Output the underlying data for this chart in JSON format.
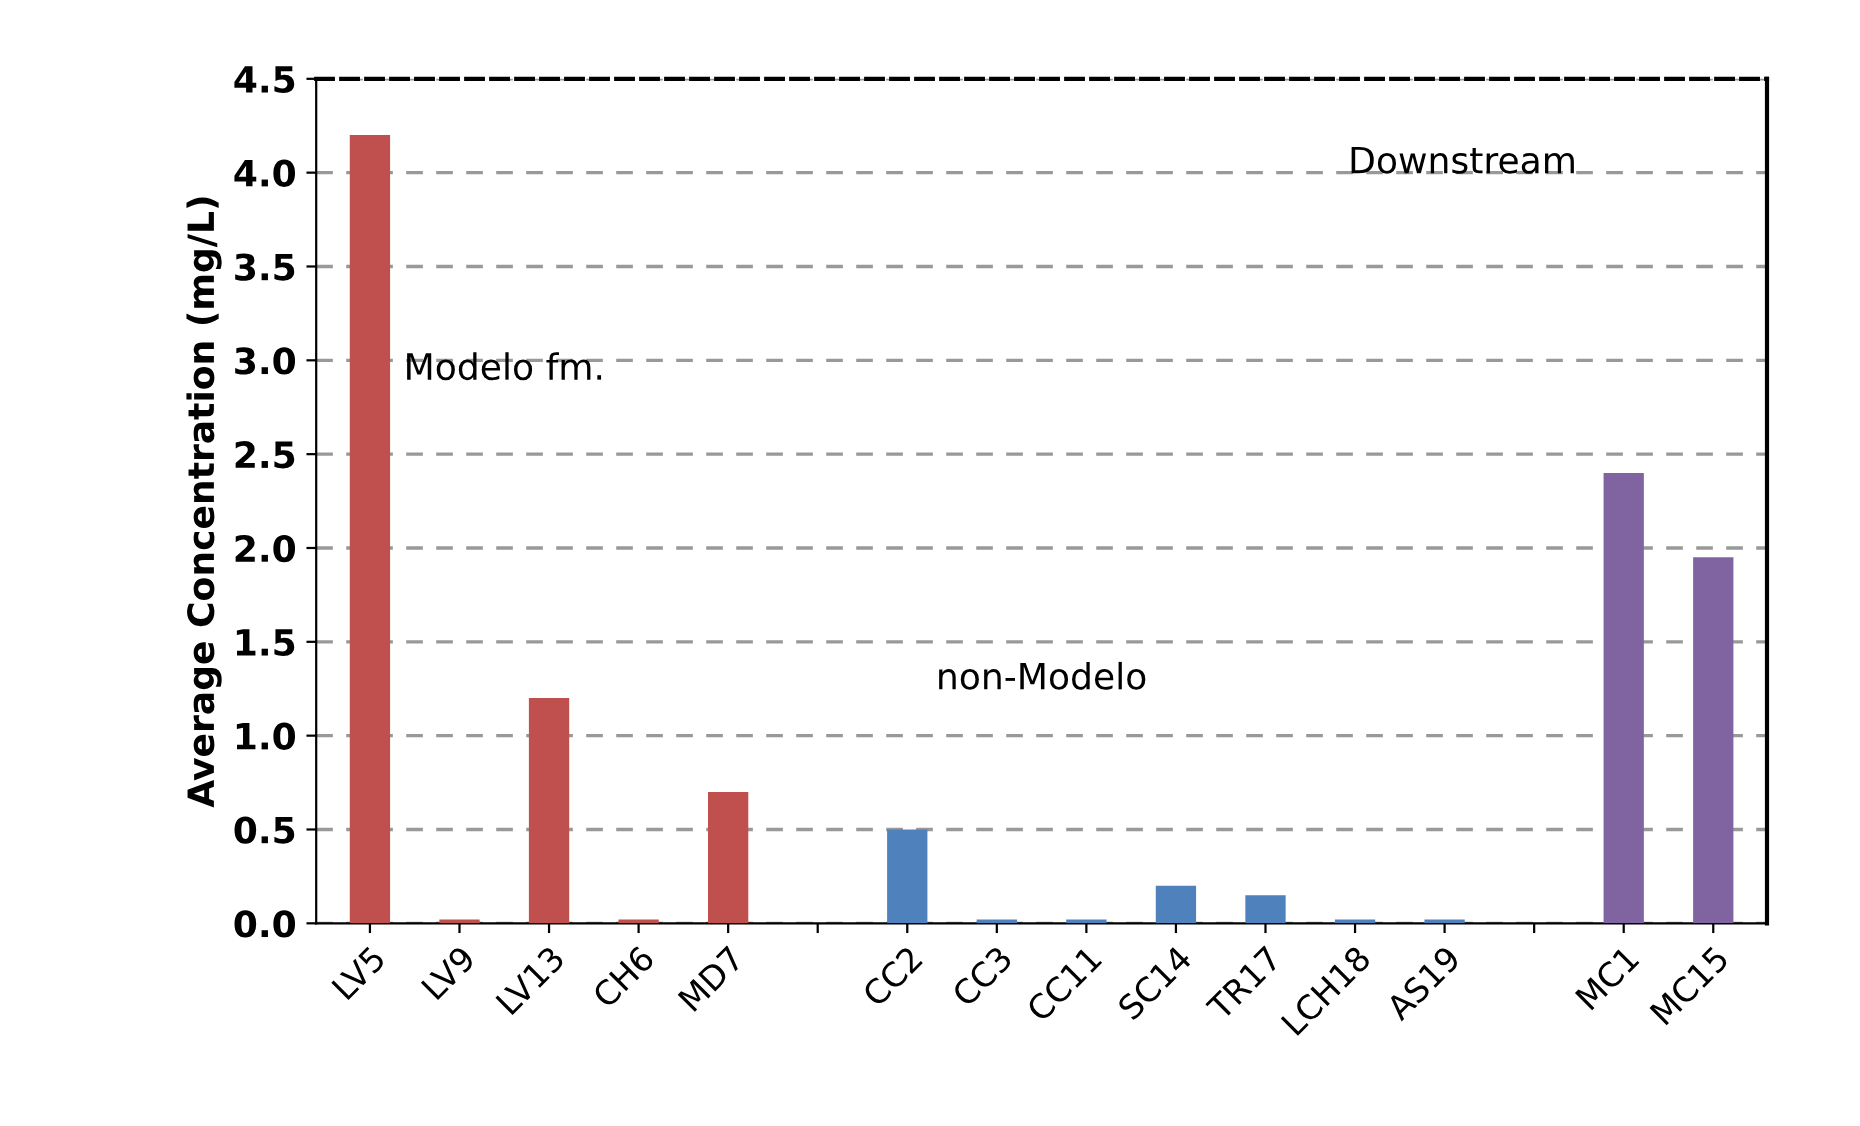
{
  "chart_data": {
    "type": "bar",
    "ylabel": "Average Concentration (mg/L)",
    "categories": [
      "LV5",
      "LV9",
      "LV13",
      "CH6",
      "MD7",
      null,
      "CC2",
      "CC3",
      "CC11",
      "SC14",
      "TR17",
      "LCH18",
      "AS19",
      null,
      "MC1",
      "MC15"
    ],
    "values": [
      4.2,
      0.02,
      1.2,
      0.02,
      0.7,
      null,
      0.5,
      0.02,
      0.02,
      0.2,
      0.15,
      0.02,
      0.02,
      null,
      2.4,
      1.95
    ],
    "colors": [
      "#c0504d",
      "#c0504d",
      "#c0504d",
      "#c0504d",
      "#c0504d",
      null,
      "#4f81bd",
      "#4f81bd",
      "#4f81bd",
      "#4f81bd",
      "#4f81bd",
      "#4f81bd",
      "#4f81bd",
      null,
      "#8064a2",
      "#8064a2"
    ],
    "ylim": [
      0,
      4.5
    ],
    "yticks": [
      {
        "value": 0,
        "label": "0.0"
      },
      0.5,
      {
        "value": 1,
        "label": "1.0"
      },
      1.5,
      {
        "value": 2,
        "label": "2.0"
      },
      2.5,
      {
        "value": 3,
        "label": "3.0"
      },
      3.5,
      {
        "value": 4,
        "label": "4.0"
      },
      4.5
    ],
    "grid": "y",
    "legend": false,
    "annotations": [
      "Modelo fm.",
      "non-Modelo",
      "Downstream"
    ]
  }
}
